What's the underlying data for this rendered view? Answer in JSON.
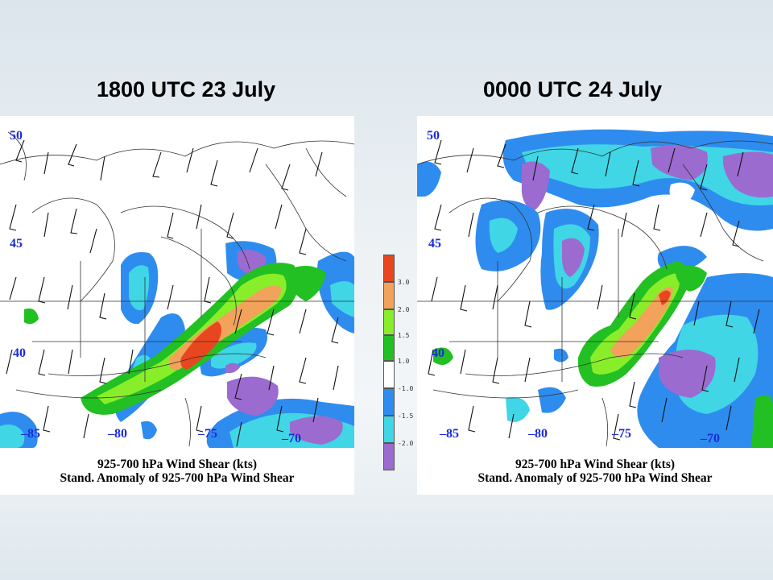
{
  "panels": [
    {
      "time_label": "1800 UTC 23 July",
      "lat_labels": [
        "50",
        "45",
        "40"
      ],
      "lon_labels": [
        "–85",
        "–80",
        "–75",
        "–70"
      ],
      "caption_line1": "925-700 hPa Wind Shear (kts)",
      "caption_line2": "Stand. Anomaly of 925-700 hPa Wind Shear"
    },
    {
      "time_label": "0000 UTC 24 July",
      "lat_labels": [
        "50",
        "45",
        "40"
      ],
      "lon_labels": [
        "–85",
        "–80",
        "–75",
        "–70"
      ],
      "caption_line1": "925-700 hPa Wind Shear (kts)",
      "caption_line2": "Stand. Anomaly of 925-700 hPa Wind Shear"
    }
  ],
  "colorbar": {
    "labels": [
      "3.0",
      "2.0",
      "1.5",
      "1.0",
      "-1.0",
      "-1.5",
      "-2.0"
    ],
    "colors": [
      "#e8461e",
      "#f2a25a",
      "#88ee2a",
      "#22c022",
      "#ffffff",
      "#2f8cef",
      "#40d6e6",
      "#9b6bd0"
    ]
  },
  "colors": {
    "strong_negative": "#9b6bd0",
    "moderate_negative": "#40d6e6",
    "weak_negative": "#2f8cef",
    "weak_positive": "#22c022",
    "moderate_positive": "#88ee2a",
    "strong_positive": "#f2a25a",
    "very_strong_positive": "#e8461e",
    "label_color": "#1a2bd8"
  }
}
